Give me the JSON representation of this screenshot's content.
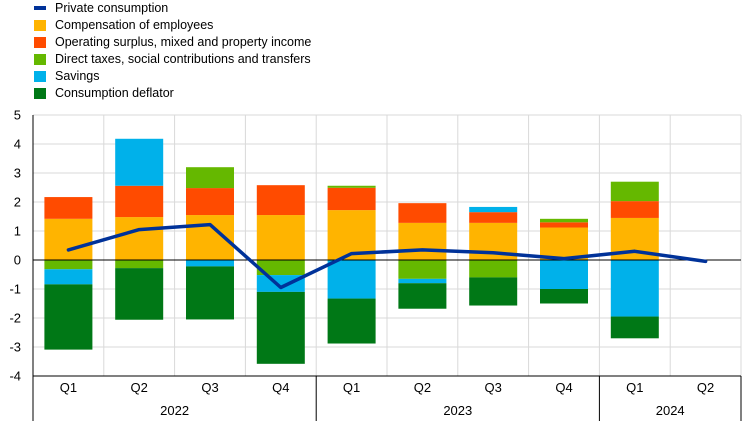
{
  "chart_data": {
    "type": "bar",
    "stacked": true,
    "categories": [
      "Q1",
      "Q2",
      "Q3",
      "Q4",
      "Q1",
      "Q2",
      "Q3",
      "Q4",
      "Q1",
      "Q2"
    ],
    "years": [
      {
        "label": "2022",
        "quarters": 4
      },
      {
        "label": "2023",
        "quarters": 4
      },
      {
        "label": "2024",
        "quarters": 2
      }
    ],
    "ylim": [
      -4,
      5
    ],
    "yticks": [
      "-4",
      "-3",
      "-2",
      "-1",
      "0",
      "1",
      "2",
      "3",
      "4",
      "5"
    ],
    "grid": true,
    "legend_position": "top-left",
    "series": [
      {
        "name": "Compensation of employees",
        "color": "#FFB400",
        "values": [
          1.42,
          1.48,
          1.55,
          1.55,
          1.72,
          1.28,
          1.28,
          1.12,
          1.45,
          null
        ]
      },
      {
        "name": "Operating surplus, mixed and property income",
        "color": "#FF4B00",
        "values": [
          0.75,
          1.08,
          0.93,
          1.03,
          0.77,
          0.68,
          0.37,
          0.18,
          0.58,
          null
        ]
      },
      {
        "name": "Direct taxes, social contributions and transfers",
        "color": "#65B800",
        "values": [
          -0.32,
          -0.28,
          0.72,
          -0.52,
          0.07,
          -0.65,
          -0.6,
          0.12,
          0.67,
          null
        ]
      },
      {
        "name": "Savings",
        "color": "#00B1EA",
        "values": [
          -0.52,
          1.62,
          -0.22,
          -0.58,
          -1.33,
          -0.15,
          0.18,
          -1.0,
          -1.95,
          null
        ]
      },
      {
        "name": "Consumption deflator",
        "color": "#007816",
        "values": [
          -2.25,
          -1.78,
          -1.83,
          -2.48,
          -1.55,
          -0.88,
          -0.97,
          -0.5,
          -0.75,
          null
        ]
      }
    ],
    "line": {
      "name": "Private consumption",
      "color": "#003299",
      "values": [
        0.35,
        1.05,
        1.22,
        -0.95,
        0.22,
        0.35,
        0.25,
        0.05,
        0.3,
        -0.05
      ]
    }
  }
}
